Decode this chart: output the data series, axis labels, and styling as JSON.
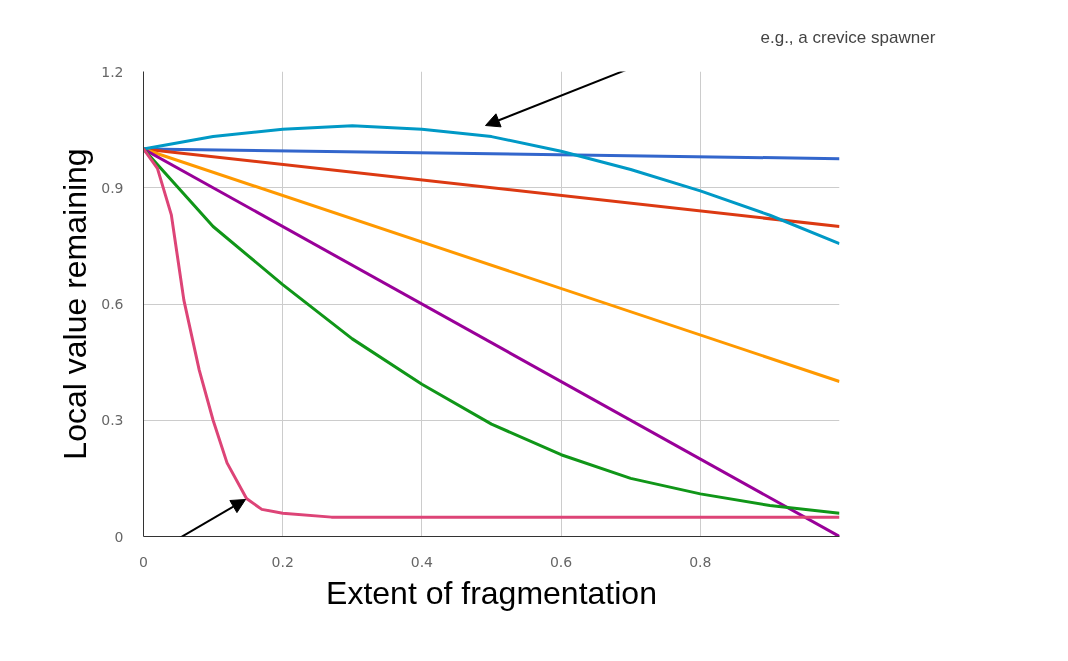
{
  "chart_data": {
    "type": "line",
    "xlabel": "Extent of fragmentation",
    "ylabel": "Local value remaining",
    "xlim": [
      0,
      1
    ],
    "ylim": [
      0,
      1.2
    ],
    "xticks": [
      0,
      0.2,
      0.4,
      0.6,
      0.8
    ],
    "yticks": [
      0,
      0.3,
      0.6,
      0.9,
      1.2
    ],
    "grid": true,
    "marker": "none",
    "line_style": "solid",
    "annotations": [
      "e.g., a crevice spawner"
    ],
    "series": [
      {
        "color": "#3366cc",
        "x": [
          0,
          1
        ],
        "values": [
          1.0,
          0.975
        ]
      },
      {
        "color": "#dc3912",
        "x": [
          0,
          1
        ],
        "values": [
          1.0,
          0.8
        ]
      },
      {
        "color": "#ff9900",
        "x": [
          0,
          1
        ],
        "values": [
          1.0,
          0.4
        ]
      },
      {
        "color": "#990099",
        "x": [
          0,
          1
        ],
        "values": [
          1.0,
          0.0
        ]
      },
      {
        "color": "#0099c6",
        "x": [
          0,
          0.1,
          0.2,
          0.3,
          0.4,
          0.5,
          0.6,
          0.7,
          0.8,
          0.9,
          1.0
        ],
        "values": [
          1.0,
          1.032,
          1.051,
          1.06,
          1.051,
          1.032,
          0.994,
          0.947,
          0.892,
          0.829,
          0.756
        ]
      },
      {
        "color": "#109618",
        "x": [
          0,
          0.1,
          0.2,
          0.3,
          0.4,
          0.5,
          0.6,
          0.7,
          0.8,
          0.9,
          1.0
        ],
        "values": [
          1.0,
          0.8,
          0.65,
          0.51,
          0.393,
          0.29,
          0.211,
          0.15,
          0.11,
          0.08,
          0.06
        ]
      },
      {
        "color": "#dd4477",
        "x": [
          0,
          0.02,
          0.04,
          0.058,
          0.08,
          0.1,
          0.12,
          0.148,
          0.17,
          0.2,
          0.27,
          1.0
        ],
        "values": [
          1.0,
          0.95,
          0.83,
          0.61,
          0.43,
          0.3,
          0.19,
          0.098,
          0.07,
          0.06,
          0.05,
          0.05
        ]
      }
    ]
  }
}
